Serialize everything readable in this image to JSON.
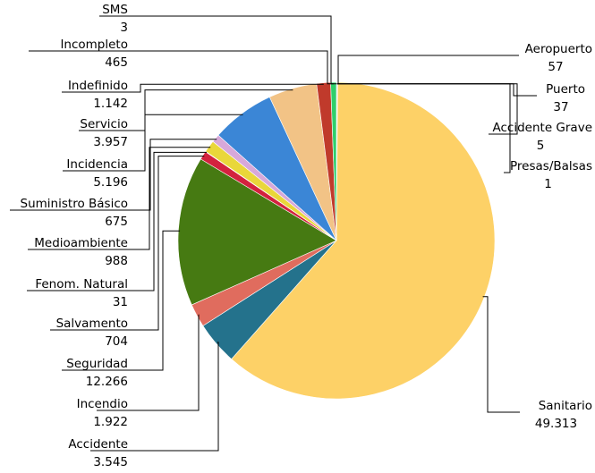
{
  "chart_data": {
    "type": "pie",
    "title": "",
    "legend": "none",
    "slices": [
      {
        "label": "Aeropuerto",
        "value": "57",
        "n": 57,
        "color": "#2f6fbd"
      },
      {
        "label": "Puerto",
        "value": "37",
        "n": 37,
        "color": "#3bbfa0"
      },
      {
        "label": "Accidente Grave",
        "value": "5",
        "n": 5,
        "color": "#6bb0e0"
      },
      {
        "label": "Presas/Balsas",
        "value": "1",
        "n": 1,
        "color": "#9370c8"
      },
      {
        "label": "Sanitario",
        "value": "49.313",
        "n": 49313,
        "color": "#fdd167"
      },
      {
        "label": "Accidente",
        "value": "3.545",
        "n": 3545,
        "color": "#24728c"
      },
      {
        "label": "Incendio",
        "value": "1.922",
        "n": 1922,
        "color": "#e06c5e"
      },
      {
        "label": "Seguridad",
        "value": "12.266",
        "n": 12266,
        "color": "#467a12"
      },
      {
        "label": "Salvamento",
        "value": "704",
        "n": 704,
        "color": "#d3223e"
      },
      {
        "label": "Fenom. Natural",
        "value": "31",
        "n": 31,
        "color": "#a8d55a"
      },
      {
        "label": "Medioambiente",
        "value": "988",
        "n": 988,
        "color": "#e9d73a"
      },
      {
        "label": "Suministro Básico",
        "value": "675",
        "n": 675,
        "color": "#d7a8d9"
      },
      {
        "label": "Incidencia",
        "value": "5.196",
        "n": 5196,
        "color": "#3b86d6"
      },
      {
        "label": "Servicio",
        "value": "3.957",
        "n": 3957,
        "color": "#f2c386"
      },
      {
        "label": "Indefinido",
        "value": "1.142",
        "n": 1142,
        "color": "#c03a2b"
      },
      {
        "label": "Incompleto",
        "value": "465",
        "n": 465,
        "color": "#2fcf6b"
      },
      {
        "label": "SMS",
        "value": "3",
        "n": 3,
        "color": "#1f3d7a"
      }
    ]
  }
}
